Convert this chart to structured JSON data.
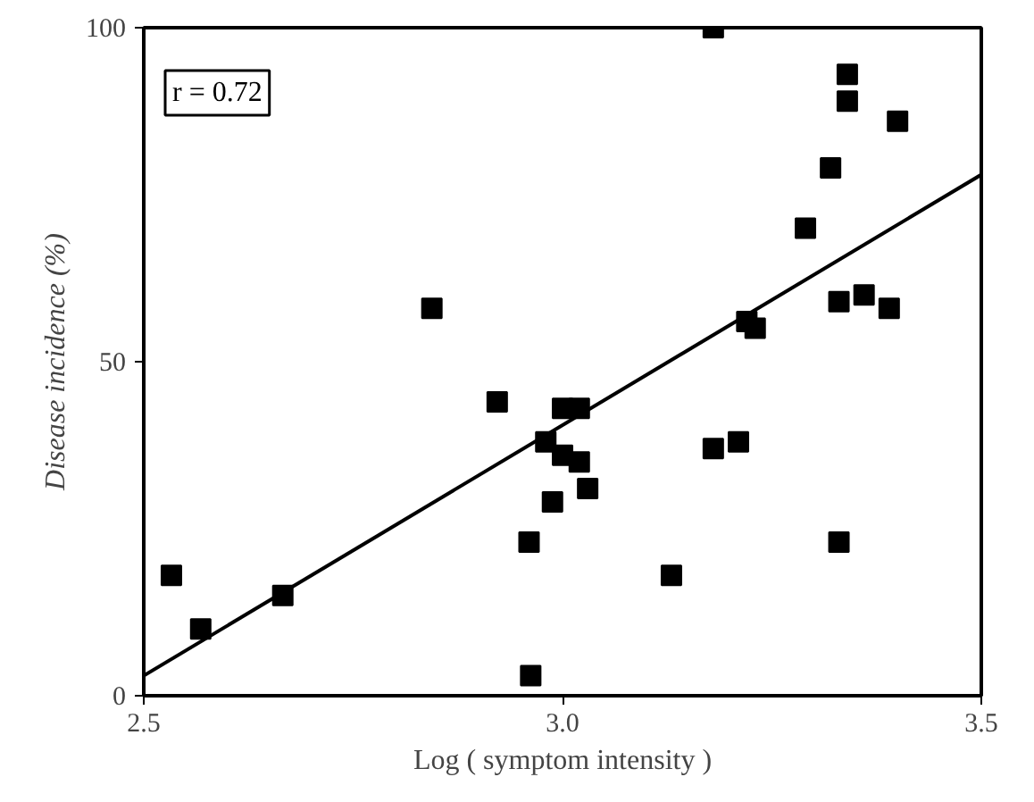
{
  "chart_data": {
    "type": "scatter",
    "xlabel": "Log ( symptom intensity )",
    "ylabel": "Disease incidence (%)",
    "xlim": [
      2.5,
      3.5
    ],
    "ylim": [
      0,
      100
    ],
    "xticks": [
      2.5,
      {
        "value": 3,
        "label": "3.0"
      },
      3.5
    ],
    "yticks": [
      0,
      50,
      100
    ],
    "grid": false,
    "marker": "square",
    "annotations": [
      "r = 0.72"
    ],
    "series": [
      {
        "color": "#000000",
        "x": [
          2.533,
          2.568,
          2.666,
          2.844,
          2.922,
          2.962,
          2.96,
          2.988,
          2.98,
          3.0,
          3.0,
          3.02,
          3.02,
          3.03,
          3.13,
          3.18,
          3.21,
          3.18,
          3.22,
          3.23,
          3.29,
          3.32,
          3.33,
          3.34,
          3.34,
          3.36,
          3.39,
          3.4,
          3.33
        ],
        "values": [
          18,
          10,
          15,
          58,
          44,
          3,
          23,
          29,
          38,
          36,
          43,
          43,
          35,
          31,
          18,
          100,
          38,
          37,
          56,
          55,
          70,
          79,
          23,
          93,
          89,
          60,
          58,
          86,
          59
        ]
      },
      {
        "type": "line",
        "marker": "none",
        "color": "#000000",
        "x": [
          2.5,
          3.5
        ],
        "values": [
          3,
          78
        ]
      }
    ]
  }
}
